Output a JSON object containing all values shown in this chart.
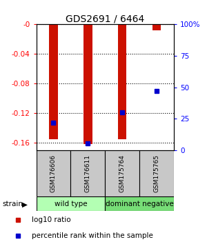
{
  "title": "GDS2691 / 6464",
  "samples": [
    "GSM176606",
    "GSM176611",
    "GSM175764",
    "GSM175765"
  ],
  "log10_ratio": [
    -0.155,
    -0.162,
    -0.155,
    -0.008
  ],
  "percentile_rank": [
    0.22,
    0.055,
    0.3,
    0.47
  ],
  "ylim_left": [
    -0.17,
    0.0
  ],
  "ylim_right": [
    0,
    1.0
  ],
  "yticks_left": [
    -0.16,
    -0.12,
    -0.08,
    -0.04,
    0
  ],
  "ytick_labels_left": [
    "-0.16",
    "-0.12",
    "-0.08",
    "-0.04",
    "-0"
  ],
  "ytick_labels_right": [
    "0",
    "25",
    "50",
    "75",
    "100%"
  ],
  "yticks_right": [
    0,
    0.25,
    0.5,
    0.75,
    1.0
  ],
  "group_labels": [
    "wild type",
    "dominant negative"
  ],
  "group_color_wt": "#b3ffb3",
  "group_color_dn": "#77dd77",
  "bar_color": "#CC1100",
  "dot_color": "#0000CC",
  "bg_color": "#FFFFFF",
  "plot_bg": "#FFFFFF",
  "sample_box_color": "#C8C8C8",
  "bar_width": 0.25,
  "strain_label": "strain",
  "legend_red": "log10 ratio",
  "legend_blue": "percentile rank within the sample"
}
